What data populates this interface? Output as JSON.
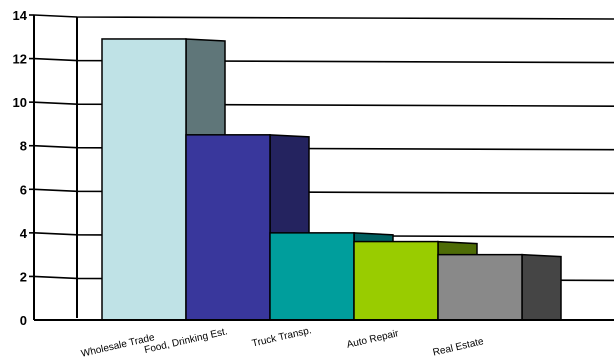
{
  "chart_data": {
    "type": "bar",
    "style": "3d-stepped",
    "categories": [
      "Wholesale Trade",
      "Food, Drinking Est.",
      "Truck Transp.",
      "Auto Repair",
      "Real Estate"
    ],
    "values": [
      12.9,
      8.5,
      4.0,
      3.6,
      3.0
    ],
    "ylim": [
      0,
      14
    ],
    "yticks": [
      0,
      2,
      4,
      6,
      8,
      10,
      12,
      14
    ],
    "grid": true,
    "title": "",
    "xlabel": "",
    "ylabel": "",
    "colors": {
      "front": [
        "#bfe2e6",
        "#39379c",
        "#009e9c",
        "#99cc00",
        "#898989"
      ],
      "side": [
        "#5f7679",
        "#24235f",
        "#006060",
        "#4e6c06",
        "#454545"
      ]
    }
  }
}
